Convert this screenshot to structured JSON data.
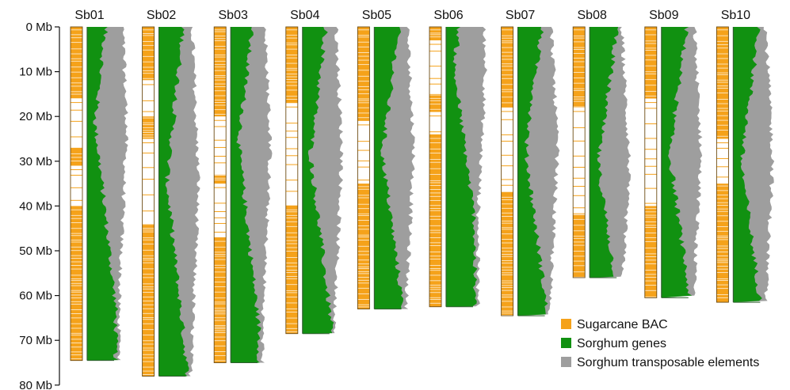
{
  "chart_data": {
    "type": "ideogram",
    "y_axis": {
      "ticks": [
        "0 Mb",
        "10 Mb",
        "20 Mb",
        "30 Mb",
        "40 Mb",
        "50 Mb",
        "60 Mb",
        "70 Mb",
        "80 Mb"
      ],
      "min": 0,
      "max": 80,
      "unit": "Mb"
    },
    "chromosomes": [
      {
        "name": "Sb01",
        "length": 74.5,
        "bac_gaps": [
          [
            16,
            27
          ],
          [
            31,
            40
          ]
        ]
      },
      {
        "name": "Sb02",
        "length": 78.0,
        "bac_gaps": [
          [
            12,
            20
          ],
          [
            25,
            44
          ]
        ]
      },
      {
        "name": "Sb03",
        "length": 75.0,
        "bac_gaps": [
          [
            20,
            33
          ],
          [
            35,
            47
          ]
        ]
      },
      {
        "name": "Sb04",
        "length": 68.5,
        "bac_gaps": [
          [
            17,
            40
          ]
        ]
      },
      {
        "name": "Sb05",
        "length": 63.0,
        "bac_gaps": [
          [
            21,
            35
          ]
        ]
      },
      {
        "name": "Sb06",
        "length": 62.5,
        "bac_gaps": [
          [
            3,
            15
          ],
          [
            19,
            24
          ]
        ]
      },
      {
        "name": "Sb07",
        "length": 64.5,
        "bac_gaps": [
          [
            18,
            37
          ]
        ]
      },
      {
        "name": "Sb08",
        "length": 56.0,
        "bac_gaps": [
          [
            18,
            42
          ]
        ]
      },
      {
        "name": "Sb09",
        "length": 60.5,
        "bac_gaps": [
          [
            16,
            40
          ]
        ]
      },
      {
        "name": "Sb10",
        "length": 61.5,
        "bac_gaps": [
          [
            25,
            35
          ]
        ]
      }
    ],
    "legend": [
      {
        "label": "Sugarcane BAC",
        "color": "#f5a21a"
      },
      {
        "label": "Sorghum genes",
        "color": "#119111"
      },
      {
        "label": "Sorghum transposable elements",
        "color": "#9e9e9e"
      }
    ],
    "legend_position": "bottom-right"
  }
}
